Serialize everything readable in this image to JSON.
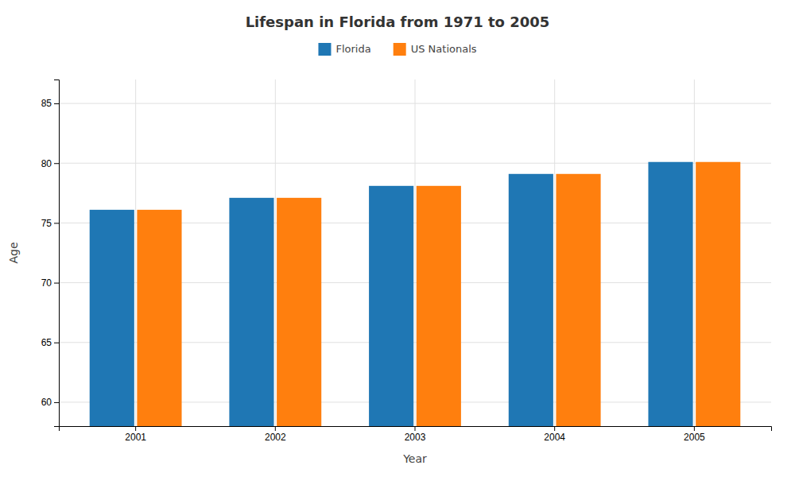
{
  "chart_data": {
    "type": "bar",
    "title": "Lifespan in Florida from 1971 to 2005",
    "xlabel": "Year",
    "ylabel": "Age",
    "categories": [
      "2001",
      "2002",
      "2003",
      "2004",
      "2005"
    ],
    "series": [
      {
        "name": "Florida",
        "values": [
          76.1,
          77.1,
          78.1,
          79.1,
          80.1
        ]
      },
      {
        "name": "US Nationals",
        "values": [
          76.1,
          77.1,
          78.1,
          79.1,
          80.1
        ]
      }
    ],
    "ylim": [
      58,
      87
    ],
    "yticks": [
      60,
      65,
      70,
      75,
      80,
      85
    ],
    "grid": true,
    "legend": "top"
  }
}
